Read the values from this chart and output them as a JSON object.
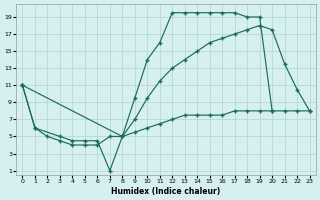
{
  "xlabel": "Humidex (Indice chaleur)",
  "bg_color": "#d6efef",
  "grid_color": "#b8d8d8",
  "line_color": "#1a6b60",
  "marker": "+",
  "xlim": [
    -0.5,
    23.5
  ],
  "ylim": [
    0.5,
    20.5
  ],
  "xticks": [
    0,
    1,
    2,
    3,
    4,
    5,
    6,
    7,
    8,
    9,
    10,
    11,
    12,
    13,
    14,
    15,
    16,
    17,
    18,
    19,
    20,
    21,
    22,
    23
  ],
  "yticks": [
    1,
    3,
    5,
    7,
    9,
    11,
    13,
    15,
    17,
    19
  ],
  "lines": [
    {
      "x": [
        0,
        1,
        3,
        4,
        5,
        6,
        7,
        8,
        9,
        10,
        11,
        12,
        13,
        14,
        15,
        16,
        17,
        18,
        19,
        20
      ],
      "y": [
        11,
        6,
        5,
        4.5,
        4.5,
        4.5,
        1,
        5,
        9.5,
        14,
        16,
        19.5,
        19.5,
        19.5,
        19.5,
        19.5,
        19.5,
        19,
        19,
        8
      ]
    },
    {
      "x": [
        0,
        1,
        2,
        3,
        4,
        5,
        6,
        7,
        8,
        9,
        10,
        11,
        12,
        13,
        14,
        15,
        16,
        17,
        18,
        19,
        20,
        21,
        22,
        23
      ],
      "y": [
        11,
        6,
        5,
        4.5,
        4,
        4,
        4,
        5,
        5,
        5.5,
        6,
        6.5,
        7,
        7.5,
        7.5,
        7.5,
        7.5,
        8,
        8,
        8,
        8,
        8,
        8,
        8
      ]
    },
    {
      "x": [
        0,
        8,
        9,
        10,
        11,
        12,
        13,
        14,
        15,
        16,
        17,
        18,
        19,
        20,
        21,
        22,
        23
      ],
      "y": [
        11,
        5,
        7,
        9.5,
        11.5,
        13,
        14,
        15,
        16,
        16.5,
        17,
        17.5,
        18,
        17.5,
        13.5,
        10.5,
        8
      ]
    }
  ]
}
